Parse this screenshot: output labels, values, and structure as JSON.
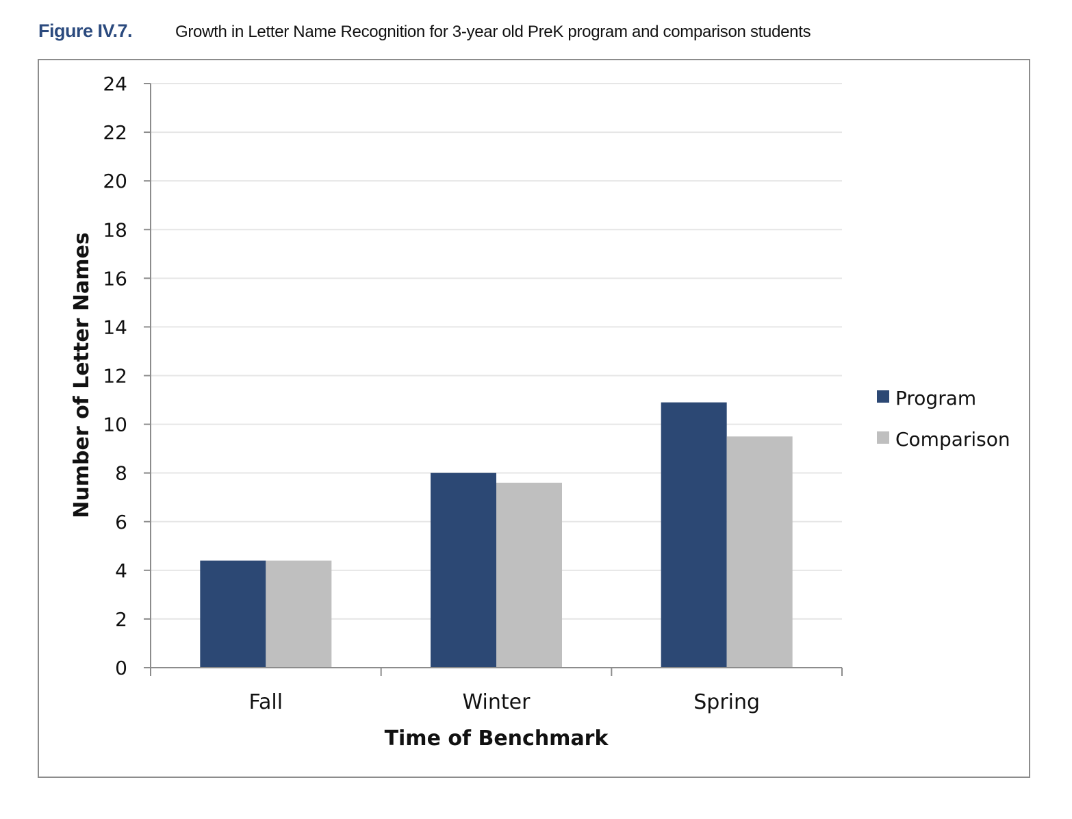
{
  "figure": {
    "label": "Figure IV.7.",
    "title": "Growth in Letter Name Recognition for 3-year old PreK program and comparison students"
  },
  "colors": {
    "program": "#2c4874",
    "comparison": "#bfbfbf",
    "gridline": "#e6e6e6",
    "axis": "#8c8c8c"
  },
  "chart_data": {
    "type": "bar",
    "title": "",
    "xlabel": "Time of Benchmark",
    "ylabel": "Number of Letter Names",
    "categories": [
      "Fall",
      "Winter",
      "Spring"
    ],
    "series": [
      {
        "name": "Program",
        "values": [
          4.4,
          8.0,
          10.9
        ]
      },
      {
        "name": "Comparison",
        "values": [
          4.4,
          7.6,
          9.5
        ]
      }
    ],
    "ylim": [
      0,
      24
    ],
    "yticks": [
      0,
      2,
      4,
      6,
      8,
      10,
      12,
      14,
      16,
      18,
      20,
      22,
      24
    ],
    "grid": true,
    "legend_position": "right"
  }
}
